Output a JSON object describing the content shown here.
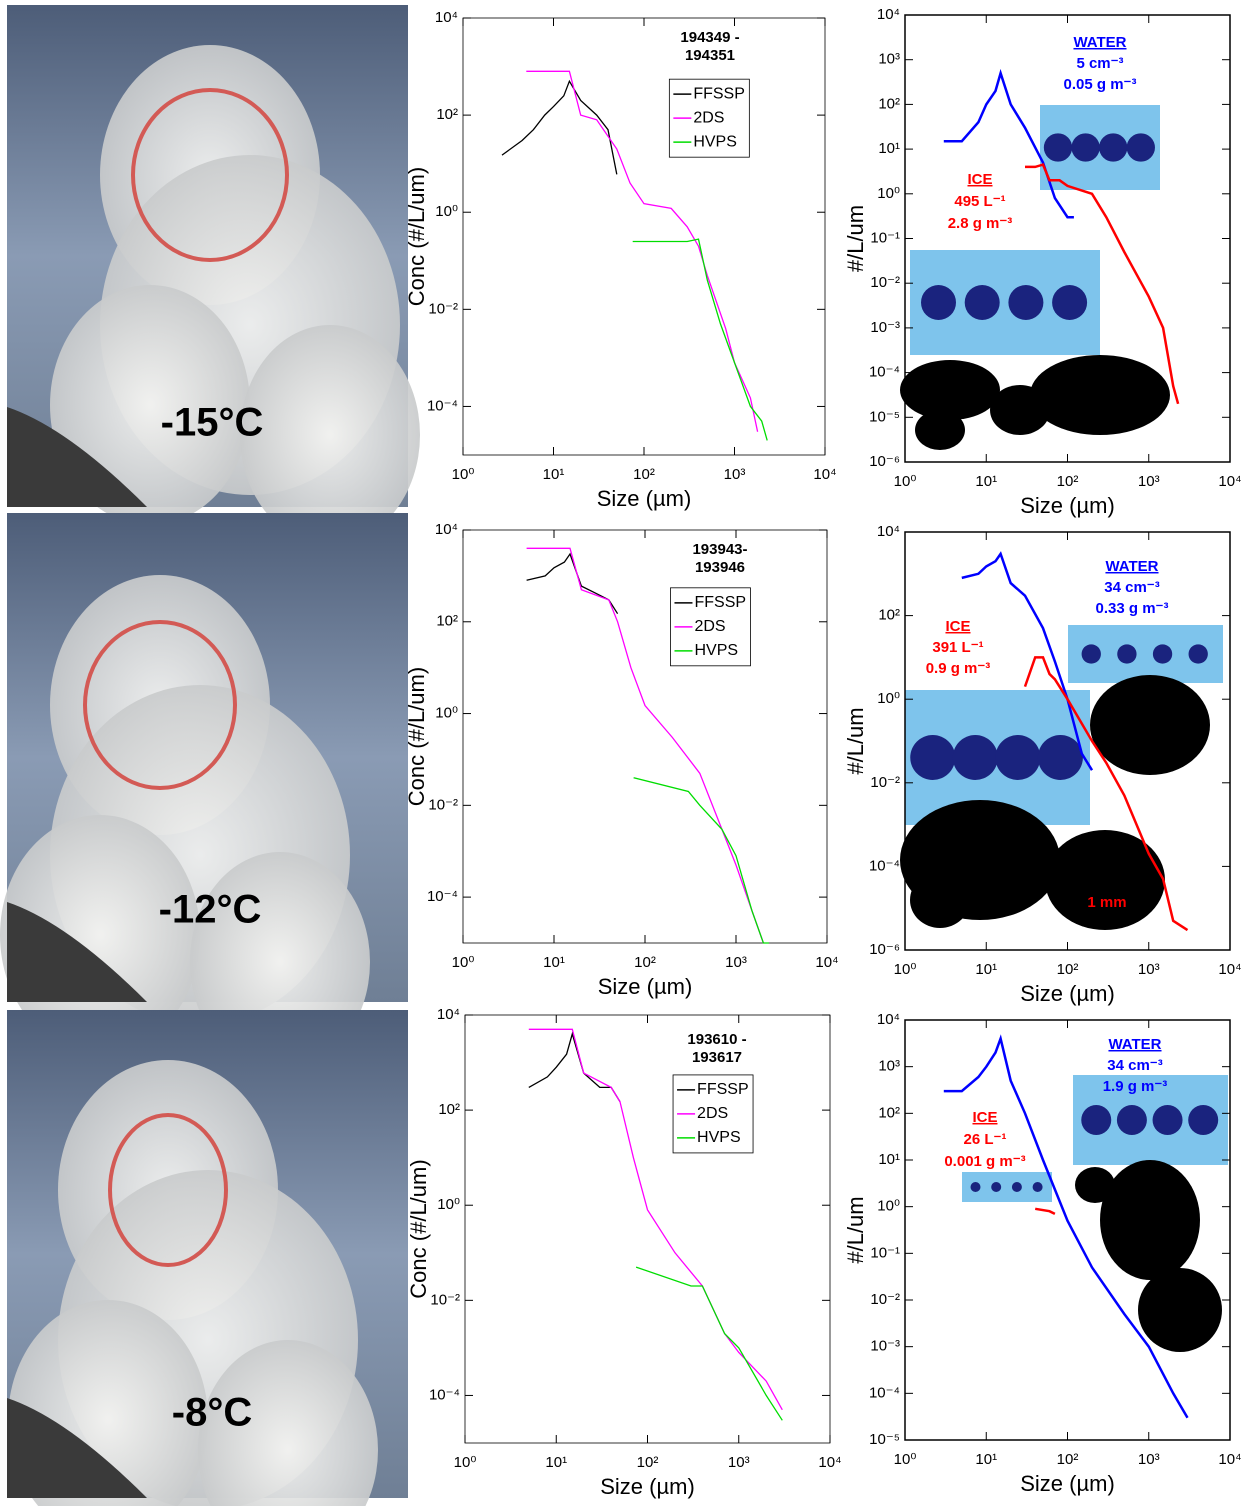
{
  "photos": [
    {
      "label": "-15°C"
    },
    {
      "label": "-12°C"
    },
    {
      "label": "-8°C"
    }
  ],
  "chart_data": [
    {
      "type": "line",
      "x_label": "Size (µm)",
      "y_label": "Conc (#/L/um)",
      "log_x": true,
      "log_y": true,
      "annotations": [
        "194349 -",
        "194351"
      ],
      "xlim": [
        1,
        10000
      ],
      "ylim": [
        1e-05,
        10000
      ],
      "xticks": [
        {
          "value": 1,
          "label": "10⁰"
        },
        {
          "value": 10,
          "label": "10¹"
        },
        {
          "value": 100,
          "label": "10²"
        },
        {
          "value": 1000,
          "label": "10³"
        },
        {
          "value": 10000,
          "label": "10⁴"
        }
      ],
      "yticks": [
        {
          "value": 0.0001,
          "label": "10⁻⁴"
        },
        {
          "value": 0.01,
          "label": "10⁻²"
        },
        {
          "value": 1,
          "label": "10⁰"
        },
        {
          "value": 100,
          "label": "10²"
        },
        {
          "value": 10000,
          "label": "10⁴"
        }
      ],
      "series": [
        {
          "name": "FFSSP",
          "color": "#000000",
          "x": [
            2.7,
            4.5,
            6,
            8,
            10,
            13,
            15,
            20,
            30,
            40,
            50
          ],
          "values": [
            15,
            30,
            50,
            100,
            150,
            250,
            500,
            200,
            100,
            50,
            6
          ]
        },
        {
          "name": "2DS",
          "color": "#ff00ff",
          "x": [
            5,
            15,
            20,
            30,
            50,
            70,
            100,
            200,
            300,
            400,
            500,
            800,
            1000,
            1500,
            1800
          ],
          "values": [
            800,
            800,
            100,
            80,
            20,
            4,
            1.5,
            1.2,
            0.5,
            0.2,
            0.05,
            0.004,
            0.0008,
            0.00015,
            3e-05
          ]
        },
        {
          "name": "HVPS",
          "color": "#00dd00",
          "x": [
            75,
            300,
            400,
            500,
            700,
            1000,
            1500,
            2000,
            2300
          ],
          "values": [
            0.25,
            0.25,
            0.28,
            0.04,
            0.005,
            0.0008,
            0.0001,
            5e-05,
            2e-05
          ]
        }
      ]
    },
    {
      "type": "line",
      "x_label": "Size (µm)",
      "y_label": "#/L/um",
      "log_x": true,
      "log_y": true,
      "annotations": [
        "WATER",
        "5 cm⁻³",
        "0.05  g m⁻³",
        "ICE",
        "495 L⁻¹",
        "2.8  g m⁻³"
      ],
      "xlim": [
        1,
        10000
      ],
      "ylim": [
        1e-06,
        10000
      ],
      "xticks": [
        {
          "value": 1,
          "label": "10⁰"
        },
        {
          "value": 10,
          "label": "10¹"
        },
        {
          "value": 100,
          "label": "10²"
        },
        {
          "value": 1000,
          "label": "10³"
        },
        {
          "value": 10000,
          "label": "10⁴"
        }
      ],
      "yticks": [
        {
          "value": 1e-06,
          "label": "10⁻⁶"
        },
        {
          "value": 1e-05,
          "label": "10⁻⁵"
        },
        {
          "value": 0.0001,
          "label": "10⁻⁴"
        },
        {
          "value": 0.001,
          "label": "10⁻³"
        },
        {
          "value": 0.01,
          "label": "10⁻²"
        },
        {
          "value": 0.1,
          "label": "10⁻¹"
        },
        {
          "value": 1,
          "label": "10⁰"
        },
        {
          "value": 10,
          "label": "10¹"
        },
        {
          "value": 100,
          "label": "10²"
        },
        {
          "value": 1000,
          "label": "10³"
        },
        {
          "value": 10000,
          "label": "10⁴"
        }
      ],
      "series": [
        {
          "color": "#0000ff",
          "x": [
            3,
            5,
            8,
            10,
            13,
            15,
            20,
            30,
            50,
            70,
            100,
            120
          ],
          "values": [
            15,
            15,
            40,
            100,
            200,
            500,
            100,
            30,
            5,
            0.8,
            0.3,
            0.3
          ]
        },
        {
          "color": "#ff0000",
          "x": [
            30,
            40,
            50,
            60,
            80,
            100,
            200,
            300,
            500,
            1000,
            1500,
            2000,
            2300
          ],
          "values": [
            4,
            4,
            4.5,
            2,
            2,
            1.5,
            1,
            0.3,
            0.05,
            0.005,
            0.001,
            5e-05,
            2e-05
          ]
        }
      ]
    },
    {
      "type": "line",
      "x_label": "Size (µm)",
      "y_label": "Conc (#/L/um)",
      "log_x": true,
      "log_y": true,
      "annotations": [
        "193943-",
        "193946"
      ],
      "xlim": [
        1,
        10000
      ],
      "ylim": [
        1e-05,
        10000
      ],
      "xticks": [
        {
          "value": 1,
          "label": "10⁰"
        },
        {
          "value": 10,
          "label": "10¹"
        },
        {
          "value": 100,
          "label": "10²"
        },
        {
          "value": 1000,
          "label": "10³"
        },
        {
          "value": 10000,
          "label": "10⁴"
        }
      ],
      "yticks": [
        {
          "value": 0.0001,
          "label": "10⁻⁴"
        },
        {
          "value": 0.01,
          "label": "10⁻²"
        },
        {
          "value": 1,
          "label": "10⁰"
        },
        {
          "value": 100,
          "label": "10²"
        },
        {
          "value": 10000,
          "label": "10⁴"
        }
      ],
      "series": [
        {
          "name": "FFSSP",
          "color": "#000000",
          "x": [
            5,
            8,
            10,
            13,
            15,
            20,
            30,
            40,
            50
          ],
          "values": [
            800,
            1000,
            1500,
            2000,
            3000,
            600,
            400,
            300,
            150
          ]
        },
        {
          "name": "2DS",
          "color": "#ff00ff",
          "x": [
            5,
            15,
            20,
            40,
            50,
            70,
            100,
            200,
            400,
            700,
            1000,
            1500,
            2000
          ],
          "values": [
            4000,
            4000,
            500,
            300,
            100,
            10,
            1.5,
            0.3,
            0.05,
            0.003,
            0.0005,
            5e-05,
            1e-05
          ]
        },
        {
          "name": "HVPS",
          "color": "#00dd00",
          "x": [
            75,
            300,
            400,
            700,
            1000,
            1500,
            2000,
            2300
          ],
          "values": [
            0.04,
            0.02,
            0.01,
            0.003,
            0.0008,
            5e-05,
            1e-05,
            1e-05
          ]
        }
      ]
    },
    {
      "type": "line",
      "x_label": "Size (µm)",
      "y_label": "#/L/um",
      "log_x": true,
      "log_y": true,
      "annotations": [
        "WATER",
        "34 cm⁻³",
        "0.33  g m⁻³",
        "ICE",
        "391 L⁻¹",
        "0.9  g m⁻³",
        "1 mm"
      ],
      "xlim": [
        1,
        10000
      ],
      "ylim": [
        1e-06,
        10000
      ],
      "xticks": [
        {
          "value": 1,
          "label": "10⁰"
        },
        {
          "value": 10,
          "label": "10¹"
        },
        {
          "value": 100,
          "label": "10²"
        },
        {
          "value": 1000,
          "label": "10³"
        },
        {
          "value": 10000,
          "label": "10⁴"
        }
      ],
      "yticks": [
        {
          "value": 1e-06,
          "label": "10⁻⁶"
        },
        {
          "value": 0.0001,
          "label": "10⁻⁴"
        },
        {
          "value": 0.01,
          "label": "10⁻²"
        },
        {
          "value": 1,
          "label": "10⁰"
        },
        {
          "value": 100,
          "label": "10²"
        },
        {
          "value": 10000,
          "label": "10⁴"
        }
      ],
      "series": [
        {
          "color": "#0000ff",
          "x": [
            5,
            8,
            10,
            13,
            15,
            20,
            30,
            50,
            70,
            100,
            150,
            200
          ],
          "values": [
            800,
            1000,
            1500,
            2000,
            3000,
            600,
            300,
            50,
            8,
            1,
            0.05,
            0.02
          ]
        },
        {
          "color": "#ff0000",
          "x": [
            30,
            40,
            50,
            60,
            70,
            100,
            200,
            300,
            500,
            1000,
            1500,
            2000,
            3000
          ],
          "values": [
            2,
            10,
            10,
            4,
            3,
            1,
            0.1,
            0.03,
            0.005,
            0.0002,
            5e-05,
            5e-06,
            3e-06
          ]
        }
      ]
    },
    {
      "type": "line",
      "x_label": "Size (µm)",
      "y_label": "Conc (#/L/um)",
      "log_x": true,
      "log_y": true,
      "annotations": [
        "193610 -",
        "193617"
      ],
      "xlim": [
        1,
        10000
      ],
      "ylim": [
        1e-05,
        10000
      ],
      "xticks": [
        {
          "value": 1,
          "label": "10⁰"
        },
        {
          "value": 10,
          "label": "10¹"
        },
        {
          "value": 100,
          "label": "10²"
        },
        {
          "value": 1000,
          "label": "10³"
        },
        {
          "value": 10000,
          "label": "10⁴"
        }
      ],
      "yticks": [
        {
          "value": 0.0001,
          "label": "10⁻⁴"
        },
        {
          "value": 0.01,
          "label": "10⁻²"
        },
        {
          "value": 1,
          "label": "10⁰"
        },
        {
          "value": 100,
          "label": "10²"
        },
        {
          "value": 10000,
          "label": "10⁴"
        }
      ],
      "series": [
        {
          "name": "FFSSP",
          "color": "#000000",
          "x": [
            5,
            8,
            10,
            13,
            15,
            20,
            30,
            40,
            50
          ],
          "values": [
            300,
            500,
            800,
            1500,
            4000,
            600,
            300,
            300,
            150
          ]
        },
        {
          "name": "2DS",
          "color": "#ff00ff",
          "x": [
            5,
            15,
            20,
            40,
            50,
            70,
            100,
            200,
            400,
            700,
            1000,
            2000,
            3000
          ],
          "values": [
            5000,
            5000,
            600,
            300,
            150,
            10,
            0.8,
            0.1,
            0.02,
            0.002,
            0.0008,
            0.0002,
            5e-05
          ]
        },
        {
          "name": "HVPS",
          "color": "#00dd00",
          "x": [
            75,
            300,
            400,
            700,
            1000,
            2000,
            3000
          ],
          "values": [
            0.05,
            0.02,
            0.02,
            0.002,
            0.001,
            0.0001,
            3e-05
          ]
        }
      ]
    },
    {
      "type": "line",
      "x_label": "Size (µm)",
      "y_label": "#/L/um",
      "log_x": true,
      "log_y": true,
      "annotations": [
        "WATER",
        "34 cm⁻³",
        "1.9  g m⁻³",
        "ICE",
        "26 L⁻¹",
        "0.001  g m⁻³"
      ],
      "xlim": [
        1,
        10000
      ],
      "ylim": [
        1e-05,
        10000
      ],
      "xticks": [
        {
          "value": 1,
          "label": "10⁰"
        },
        {
          "value": 10,
          "label": "10¹"
        },
        {
          "value": 100,
          "label": "10²"
        },
        {
          "value": 1000,
          "label": "10³"
        },
        {
          "value": 10000,
          "label": "10⁴"
        }
      ],
      "yticks": [
        {
          "value": 1e-05,
          "label": "10⁻⁵"
        },
        {
          "value": 0.0001,
          "label": "10⁻⁴"
        },
        {
          "value": 0.001,
          "label": "10⁻³"
        },
        {
          "value": 0.01,
          "label": "10⁻²"
        },
        {
          "value": 0.1,
          "label": "10⁻¹"
        },
        {
          "value": 1,
          "label": "10⁰"
        },
        {
          "value": 10,
          "label": "10¹"
        },
        {
          "value": 100,
          "label": "10²"
        },
        {
          "value": 1000,
          "label": "10³"
        },
        {
          "value": 10000,
          "label": "10⁴"
        }
      ],
      "series": [
        {
          "color": "#0000ff",
          "x": [
            3,
            5,
            8,
            10,
            13,
            15,
            20,
            30,
            50,
            100,
            200,
            500,
            1000,
            2000,
            3000
          ],
          "values": [
            300,
            300,
            600,
            1000,
            2000,
            4000,
            500,
            100,
            10,
            0.5,
            0.05,
            0.005,
            0.001,
            0.0001,
            3e-05
          ]
        },
        {
          "color": "#ff0000",
          "x": [
            40,
            60,
            70
          ],
          "values": [
            0.9,
            0.8,
            0.7
          ]
        }
      ]
    }
  ]
}
